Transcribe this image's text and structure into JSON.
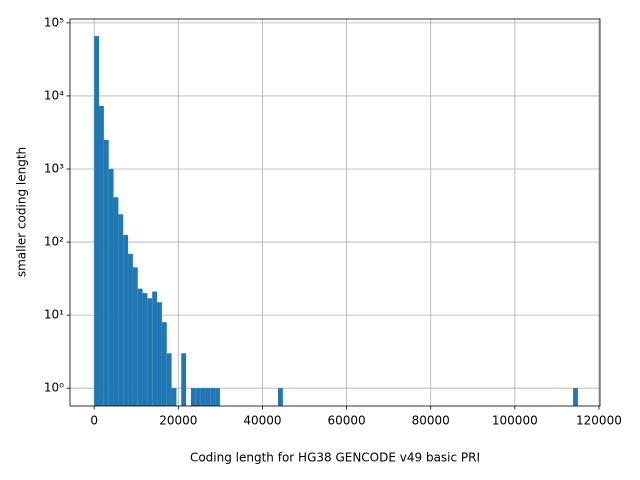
{
  "chart_data": {
    "type": "histogram",
    "xlabel": "Coding length for HG38 GENCODE v49 basic PRI",
    "ylabel": "smaller coding length",
    "color": "#1f77b4",
    "grid": true,
    "ylog": true,
    "bins": [
      0,
      1150,
      2300,
      3450,
      4600,
      5750,
      6900,
      8050,
      9200,
      10350,
      11500,
      12650,
      13800,
      14950,
      16100,
      17250,
      18400,
      19550,
      20700,
      21850,
      23000,
      24150,
      25300,
      26450,
      27600,
      28750,
      29900,
      31050,
      32200,
      33350,
      34500,
      35650,
      36800,
      37950,
      39100,
      40250,
      41400,
      42550,
      43700,
      44850,
      46000,
      47150,
      48300,
      49450,
      50600,
      51750,
      52900,
      54050,
      55200,
      56350,
      57500,
      58650,
      59800,
      60950,
      62100,
      63250,
      64400,
      65550,
      66700,
      67850,
      69000,
      70150,
      71300,
      72450,
      73600,
      74750,
      75900,
      77050,
      78200,
      79350,
      80500,
      81650,
      82800,
      83950,
      85100,
      86250,
      87400,
      88550,
      89700,
      90850,
      92000,
      93150,
      94300,
      95450,
      96600,
      97750,
      98900,
      100050,
      101200,
      102350,
      103500,
      104650,
      105800,
      106950,
      108100,
      109250,
      110400,
      111550,
      112700,
      113850,
      115000
    ],
    "values": [
      66000,
      7300,
      2500,
      1000,
      410,
      240,
      125,
      69,
      45,
      23,
      20,
      17,
      21,
      15,
      8,
      3,
      1,
      0,
      3,
      0,
      1,
      1,
      1,
      1,
      1,
      1,
      0,
      0,
      0,
      0,
      0,
      0,
      0,
      0,
      0,
      0,
      0,
      0,
      1,
      0,
      0,
      0,
      0,
      0,
      0,
      0,
      0,
      0,
      0,
      0,
      0,
      0,
      0,
      0,
      0,
      0,
      0,
      0,
      0,
      0,
      0,
      0,
      0,
      0,
      0,
      0,
      0,
      0,
      0,
      0,
      0,
      0,
      0,
      0,
      0,
      0,
      0,
      0,
      0,
      0,
      0,
      0,
      0,
      0,
      0,
      0,
      0,
      0,
      0,
      0,
      0,
      0,
      0,
      0,
      0,
      0,
      0,
      0,
      0,
      1
    ],
    "xlim": [
      -5750,
      120250
    ],
    "xticks": [
      0,
      20000,
      40000,
      60000,
      80000,
      100000,
      120000
    ],
    "ylim": [
      0.57,
      113000
    ],
    "yticks": [
      {
        "value": 1,
        "label": "10⁰"
      },
      {
        "value": 10,
        "label": "10¹"
      },
      {
        "value": 100,
        "label": "10²"
      },
      {
        "value": 1000,
        "label": "10³"
      },
      {
        "value": 10000,
        "label": "10⁴"
      },
      {
        "value": 100000,
        "label": "10⁵"
      }
    ]
  }
}
